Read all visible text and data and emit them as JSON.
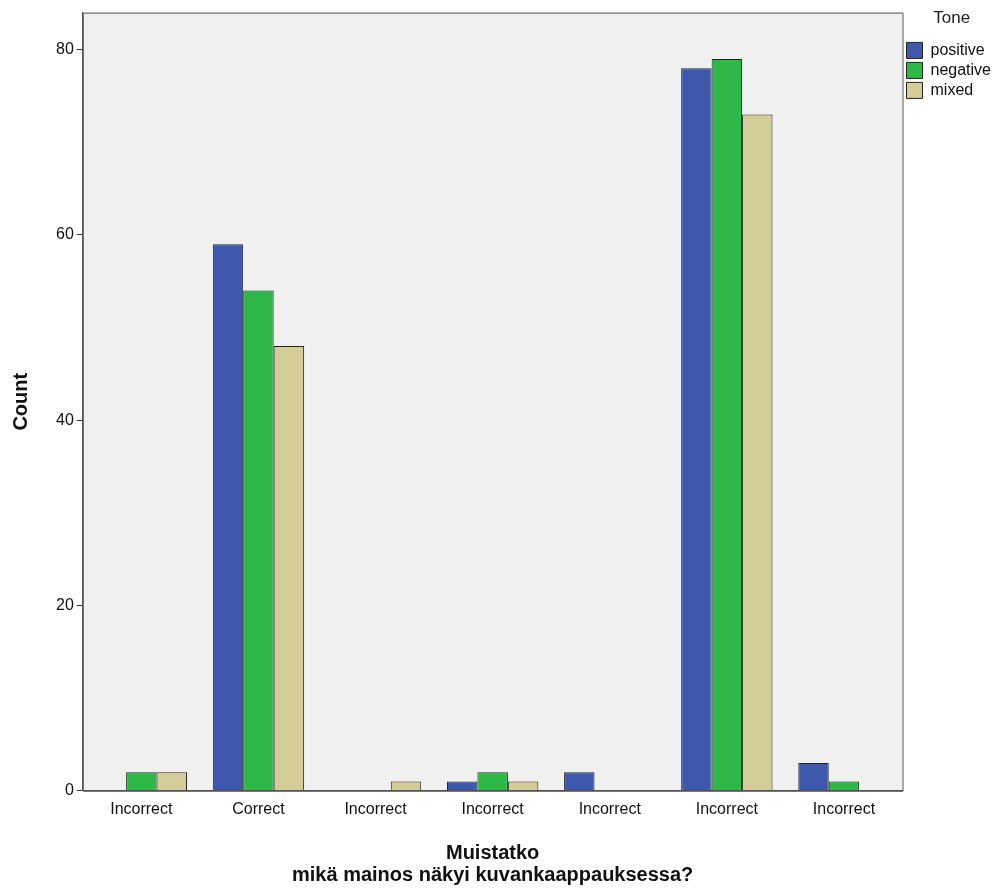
{
  "chart_data": {
    "type": "bar",
    "categories": [
      "Incorrect",
      "Correct",
      "Incorrect",
      "Incorrect",
      "Incorrect",
      "Incorrect",
      "Incorrect"
    ],
    "series": [
      {
        "name": "positive",
        "color": "#3e58ac",
        "values": [
          0,
          59,
          0,
          1,
          2,
          78,
          3
        ]
      },
      {
        "name": "negative",
        "color": "#2eb848",
        "values": [
          2,
          54,
          0,
          2,
          0,
          79,
          1
        ]
      },
      {
        "name": "mixed",
        "color": "#d3ce97",
        "values": [
          2,
          48,
          1,
          1,
          0,
          73,
          0
        ]
      }
    ],
    "xlabel": "Muistatko\nmikä mainos näkyi kuvankaappauksessa?",
    "ylabel": "Count",
    "legend_title": "Tone",
    "legend": "top right",
    "ylim": [
      0,
      84
    ],
    "yticks": [
      0,
      20,
      40,
      60,
      80
    ],
    "grid": false
  }
}
